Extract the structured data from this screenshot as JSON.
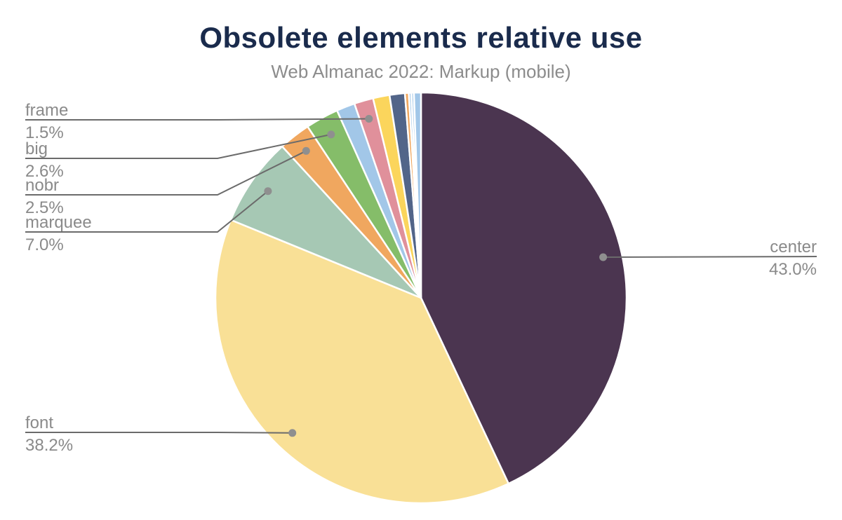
{
  "header": {
    "title": "Obsolete elements relative use",
    "subtitle": "Web Almanac 2022: Markup (mobile)"
  },
  "colors": {
    "background": "#FFFFFF",
    "title_text": "#1A2B4C",
    "subtitle_text": "#8C8C8C",
    "label_text": "#8A8A8A",
    "leader_line": "#6B6B6B",
    "leader_dot": "#8F8F8F",
    "slice_border": "#FFFFFF"
  },
  "chart_data": {
    "type": "pie",
    "title": "Obsolete elements relative use",
    "subtitle": "Web Almanac 2022: Markup (mobile)",
    "start_angle_deg": 0,
    "direction": "clockwise",
    "value_unit": "%",
    "slices": [
      {
        "label": "center",
        "value": 43.0,
        "color": "#4B3550",
        "labeled": true
      },
      {
        "label": "font",
        "value": 38.2,
        "color": "#F9E096",
        "labeled": true
      },
      {
        "label": "marquee",
        "value": 7.0,
        "color": "#A6C8B4",
        "labeled": true
      },
      {
        "label": "nobr",
        "value": 2.5,
        "color": "#F0A75F",
        "labeled": true
      },
      {
        "label": "big",
        "value": 2.6,
        "color": "#85BD69",
        "labeled": true
      },
      {
        "label": "",
        "value": 1.45,
        "color": "#A2C7E8",
        "labeled": false,
        "value_estimated": true
      },
      {
        "label": "frame",
        "value": 1.5,
        "color": "#E0909B",
        "labeled": true
      },
      {
        "label": "",
        "value": 1.3,
        "color": "#FBD55C",
        "labeled": false,
        "value_estimated": true
      },
      {
        "label": "",
        "value": 1.2,
        "color": "#526589",
        "labeled": false,
        "value_estimated": true
      },
      {
        "label": "",
        "value": 0.3,
        "color": "#F0A75F",
        "labeled": false,
        "value_estimated": true
      },
      {
        "label": "",
        "value": 0.2,
        "color": "#A2C7E8",
        "labeled": false,
        "value_estimated": true
      },
      {
        "label": "",
        "value": 0.2,
        "color": "#A2C7E8",
        "labeled": false,
        "value_estimated": true
      },
      {
        "label": "",
        "value": 0.55,
        "color": "#A2C7E8",
        "labeled": false,
        "value_estimated": true
      }
    ],
    "labeled_slice_callouts": [
      {
        "label": "frame",
        "text_value": "1.5%",
        "side": "left"
      },
      {
        "label": "big",
        "text_value": "2.6%",
        "side": "left"
      },
      {
        "label": "nobr",
        "text_value": "2.5%",
        "side": "left"
      },
      {
        "label": "marquee",
        "text_value": "7.0%",
        "side": "left"
      },
      {
        "label": "font",
        "text_value": "38.2%",
        "side": "left"
      },
      {
        "label": "center",
        "text_value": "43.0%",
        "side": "right"
      }
    ],
    "legend_position": "none",
    "grid": false
  }
}
